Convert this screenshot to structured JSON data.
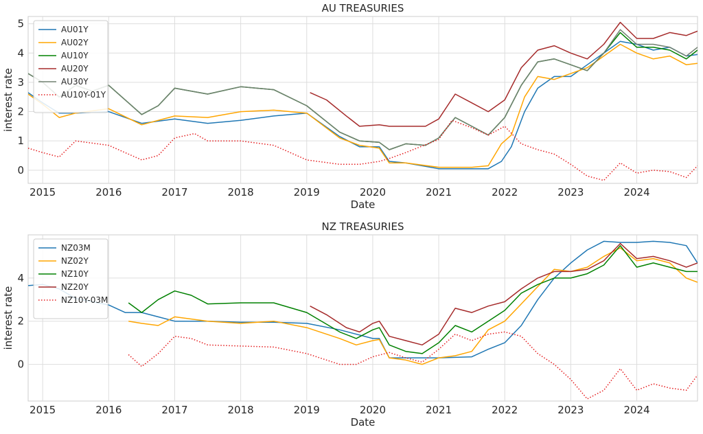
{
  "chart_data": [
    {
      "type": "line",
      "title": "AU TREASURIES",
      "xlabel": "Date",
      "ylabel": "interest rate",
      "xlim": [
        2014.78,
        2024.92
      ],
      "ylim": [
        -0.45,
        5.25
      ],
      "x_ticks": [
        "2015",
        "2016",
        "2017",
        "2018",
        "2019",
        "2020",
        "2021",
        "2022",
        "2023",
        "2024"
      ],
      "y_ticks": [
        "0",
        "1",
        "2",
        "3",
        "4",
        "5"
      ],
      "grid": true,
      "legend_position": "top-left",
      "series": [
        {
          "name": "AU01Y",
          "color": "#1f77b4",
          "style": "solid",
          "x": [
            2014.78,
            2015.0,
            2015.25,
            2015.5,
            2016.0,
            2016.5,
            2017.0,
            2017.5,
            2018.0,
            2018.5,
            2019.0,
            2019.5,
            2019.8,
            2020.1,
            2020.25,
            2020.5,
            2021.0,
            2021.5,
            2021.75,
            2021.95,
            2022.1,
            2022.3,
            2022.5,
            2022.75,
            2023.0,
            2023.25,
            2023.5,
            2023.75,
            2024.0,
            2024.25,
            2024.5,
            2024.75,
            2024.92
          ],
          "values": [
            2.65,
            2.3,
            1.95,
            1.95,
            2.0,
            1.6,
            1.75,
            1.6,
            1.7,
            1.85,
            1.95,
            1.15,
            0.8,
            0.8,
            0.3,
            0.25,
            0.05,
            0.05,
            0.05,
            0.3,
            0.8,
            2.0,
            2.8,
            3.2,
            3.2,
            3.6,
            4.0,
            4.4,
            4.3,
            4.1,
            4.2,
            3.9,
            3.95
          ]
        },
        {
          "name": "AU02Y",
          "color": "#ffa500",
          "style": "solid",
          "x": [
            2014.78,
            2015.0,
            2015.25,
            2015.5,
            2016.0,
            2016.5,
            2017.0,
            2017.5,
            2018.0,
            2018.5,
            2019.0,
            2019.5,
            2019.8,
            2020.1,
            2020.25,
            2020.5,
            2021.0,
            2021.5,
            2021.75,
            2021.95,
            2022.1,
            2022.3,
            2022.5,
            2022.75,
            2023.0,
            2023.25,
            2023.5,
            2023.75,
            2024.0,
            2024.25,
            2024.5,
            2024.75,
            2024.92
          ],
          "values": [
            2.6,
            2.25,
            1.8,
            1.95,
            2.1,
            1.55,
            1.85,
            1.8,
            2.0,
            2.05,
            1.95,
            1.1,
            0.85,
            0.75,
            0.25,
            0.25,
            0.1,
            0.1,
            0.15,
            0.9,
            1.2,
            2.5,
            3.2,
            3.1,
            3.3,
            3.5,
            3.9,
            4.3,
            4.0,
            3.8,
            3.9,
            3.6,
            3.65
          ]
        },
        {
          "name": "AU10Y",
          "color": "#008000",
          "style": "solid",
          "x": [
            2014.78,
            2015.0,
            2015.25,
            2015.5,
            2015.75,
            2016.0,
            2016.5,
            2016.75,
            2017.0,
            2017.5,
            2018.0,
            2018.5,
            2019.0,
            2019.5,
            2019.8,
            2020.1,
            2020.25,
            2020.5,
            2020.8,
            2021.0,
            2021.25,
            2021.5,
            2021.75,
            2022.0,
            2022.25,
            2022.5,
            2022.75,
            2023.0,
            2023.25,
            2023.5,
            2023.75,
            2024.0,
            2024.25,
            2024.5,
            2024.75,
            2024.92
          ],
          "values": [
            3.3,
            3.0,
            2.5,
            2.9,
            2.7,
            2.9,
            1.9,
            2.2,
            2.8,
            2.6,
            2.85,
            2.75,
            2.2,
            1.3,
            1.0,
            0.95,
            0.7,
            0.9,
            0.85,
            1.1,
            1.8,
            1.5,
            1.2,
            1.8,
            2.9,
            3.7,
            3.8,
            3.6,
            3.4,
            4.0,
            4.7,
            4.2,
            4.2,
            4.1,
            3.8,
            4.1
          ]
        },
        {
          "name": "AU20Y",
          "color": "#a52a2a",
          "style": "solid",
          "x": [
            2019.05,
            2019.3,
            2019.6,
            2019.8,
            2020.1,
            2020.25,
            2020.5,
            2020.8,
            2021.0,
            2021.25,
            2021.5,
            2021.75,
            2022.0,
            2022.25,
            2022.5,
            2022.75,
            2023.0,
            2023.25,
            2023.5,
            2023.75,
            2024.0,
            2024.25,
            2024.5,
            2024.75,
            2024.92
          ],
          "values": [
            2.65,
            2.4,
            1.85,
            1.5,
            1.55,
            1.5,
            1.5,
            1.5,
            1.75,
            2.6,
            2.3,
            2.0,
            2.4,
            3.5,
            4.1,
            4.25,
            4.0,
            3.8,
            4.3,
            5.05,
            4.5,
            4.5,
            4.7,
            4.6,
            4.75
          ]
        },
        {
          "name": "AU30Y",
          "color": "#708070",
          "style": "solid",
          "x": [
            2014.78,
            2015.0,
            2015.25,
            2015.5,
            2015.75,
            2016.0,
            2016.5,
            2016.75,
            2017.0,
            2017.5,
            2018.0,
            2018.5,
            2019.0,
            2019.5,
            2019.8,
            2020.1,
            2020.25,
            2020.5,
            2020.8,
            2021.0,
            2021.25,
            2021.5,
            2021.75,
            2022.0,
            2022.25,
            2022.5,
            2022.75,
            2023.0,
            2023.25,
            2023.5,
            2023.75,
            2024.0,
            2024.25,
            2024.5,
            2024.75,
            2024.92
          ],
          "values": [
            3.3,
            3.0,
            2.5,
            2.9,
            2.7,
            2.9,
            1.9,
            2.2,
            2.8,
            2.6,
            2.85,
            2.75,
            2.2,
            1.3,
            1.0,
            0.95,
            0.7,
            0.9,
            0.85,
            1.1,
            1.8,
            1.5,
            1.2,
            1.8,
            2.9,
            3.7,
            3.8,
            3.6,
            3.4,
            4.0,
            4.8,
            4.3,
            4.3,
            4.2,
            3.9,
            4.2
          ]
        },
        {
          "name": "AU10Y-01Y",
          "color": "#e41a1c",
          "style": "dotted",
          "x": [
            2014.78,
            2015.0,
            2015.25,
            2015.5,
            2016.0,
            2016.5,
            2016.75,
            2017.0,
            2017.3,
            2017.5,
            2018.0,
            2018.5,
            2019.0,
            2019.5,
            2019.8,
            2020.1,
            2020.25,
            2020.5,
            2021.0,
            2021.2,
            2021.5,
            2021.75,
            2022.0,
            2022.25,
            2022.5,
            2022.75,
            2023.0,
            2023.25,
            2023.5,
            2023.75,
            2024.0,
            2024.25,
            2024.5,
            2024.75,
            2024.92
          ],
          "values": [
            0.75,
            0.6,
            0.45,
            1.0,
            0.85,
            0.35,
            0.5,
            1.1,
            1.25,
            1.0,
            1.0,
            0.85,
            0.35,
            0.2,
            0.2,
            0.3,
            0.4,
            0.6,
            1.05,
            1.7,
            1.45,
            1.2,
            1.5,
            0.9,
            0.7,
            0.55,
            0.2,
            -0.2,
            -0.35,
            0.25,
            -0.1,
            0.0,
            -0.05,
            -0.25,
            0.15
          ]
        }
      ]
    },
    {
      "type": "line",
      "title": "NZ TREASURIES",
      "xlabel": "Date",
      "ylabel": "interest rate",
      "xlim": [
        2014.78,
        2024.92
      ],
      "ylim": [
        -1.7,
        6.0
      ],
      "x_ticks": [
        "2015",
        "2016",
        "2017",
        "2018",
        "2019",
        "2020",
        "2021",
        "2022",
        "2023",
        "2024"
      ],
      "y_ticks": [
        "0",
        "2",
        "4"
      ],
      "grid": true,
      "legend_position": "top-left",
      "series": [
        {
          "name": "NZ03M",
          "color": "#1f77b4",
          "style": "solid",
          "x": [
            2014.78,
            2015.0,
            2015.25,
            2015.5,
            2015.75,
            2016.0,
            2016.25,
            2016.5,
            2016.75,
            2017.0,
            2017.5,
            2018.0,
            2018.5,
            2019.0,
            2019.5,
            2020.0,
            2020.1,
            2020.25,
            2020.5,
            2021.0,
            2021.5,
            2021.75,
            2022.0,
            2022.25,
            2022.5,
            2022.75,
            2023.0,
            2023.25,
            2023.5,
            2023.75,
            2024.0,
            2024.25,
            2024.5,
            2024.75,
            2024.92
          ],
          "values": [
            3.65,
            3.7,
            3.5,
            3.05,
            2.9,
            2.75,
            2.4,
            2.4,
            2.2,
            2.0,
            2.0,
            1.95,
            1.95,
            1.9,
            1.6,
            1.2,
            1.2,
            0.3,
            0.3,
            0.3,
            0.35,
            0.7,
            1.0,
            1.8,
            3.0,
            4.0,
            4.7,
            5.3,
            5.7,
            5.65,
            5.65,
            5.7,
            5.65,
            5.5,
            4.7
          ]
        },
        {
          "name": "NZ02Y",
          "color": "#ffa500",
          "style": "solid",
          "x": [
            2016.3,
            2016.5,
            2016.75,
            2017.0,
            2017.5,
            2018.0,
            2018.5,
            2019.0,
            2019.5,
            2019.75,
            2020.0,
            2020.1,
            2020.25,
            2020.5,
            2020.75,
            2021.0,
            2021.25,
            2021.5,
            2021.75,
            2022.0,
            2022.25,
            2022.5,
            2022.75,
            2023.0,
            2023.25,
            2023.5,
            2023.75,
            2024.0,
            2024.25,
            2024.5,
            2024.75,
            2024.92
          ],
          "values": [
            2.0,
            1.9,
            1.8,
            2.2,
            2.0,
            1.9,
            2.0,
            1.7,
            1.2,
            0.9,
            1.1,
            1.15,
            0.3,
            0.2,
            0.0,
            0.3,
            0.4,
            0.6,
            1.6,
            2.0,
            2.8,
            3.6,
            4.4,
            4.3,
            4.5,
            5.0,
            5.4,
            4.8,
            4.9,
            4.7,
            4.0,
            3.8
          ]
        },
        {
          "name": "NZ10Y",
          "color": "#008000",
          "style": "solid",
          "x": [
            2016.3,
            2016.5,
            2016.75,
            2017.0,
            2017.25,
            2017.5,
            2018.0,
            2018.5,
            2019.0,
            2019.5,
            2019.75,
            2020.0,
            2020.1,
            2020.25,
            2020.5,
            2020.75,
            2021.0,
            2021.25,
            2021.5,
            2021.75,
            2022.0,
            2022.25,
            2022.5,
            2022.75,
            2023.0,
            2023.25,
            2023.5,
            2023.75,
            2024.0,
            2024.25,
            2024.5,
            2024.75,
            2024.92
          ],
          "values": [
            2.85,
            2.4,
            3.0,
            3.4,
            3.2,
            2.8,
            2.85,
            2.85,
            2.4,
            1.5,
            1.2,
            1.6,
            1.7,
            0.9,
            0.6,
            0.5,
            1.0,
            1.8,
            1.5,
            2.0,
            2.5,
            3.3,
            3.7,
            4.0,
            4.0,
            4.2,
            4.6,
            5.5,
            4.5,
            4.7,
            4.5,
            4.3,
            4.3
          ]
        },
        {
          "name": "NZ20Y",
          "color": "#a52a2a",
          "style": "solid",
          "x": [
            2019.05,
            2019.3,
            2019.6,
            2019.8,
            2020.0,
            2020.1,
            2020.25,
            2020.5,
            2020.75,
            2021.0,
            2021.25,
            2021.5,
            2021.75,
            2022.0,
            2022.25,
            2022.5,
            2022.75,
            2023.0,
            2023.25,
            2023.5,
            2023.75,
            2024.0,
            2024.25,
            2024.5,
            2024.75,
            2024.92
          ],
          "values": [
            2.7,
            2.3,
            1.7,
            1.5,
            1.9,
            2.0,
            1.3,
            1.1,
            0.9,
            1.4,
            2.6,
            2.4,
            2.7,
            2.9,
            3.5,
            4.0,
            4.3,
            4.3,
            4.4,
            4.8,
            5.6,
            4.9,
            5.0,
            4.8,
            4.5,
            4.7
          ]
        },
        {
          "name": "NZ10Y-03M",
          "color": "#e41a1c",
          "style": "dotted",
          "x": [
            2016.3,
            2016.5,
            2016.75,
            2017.0,
            2017.25,
            2017.5,
            2018.0,
            2018.5,
            2019.0,
            2019.5,
            2019.75,
            2020.0,
            2020.25,
            2020.5,
            2020.75,
            2021.0,
            2021.25,
            2021.5,
            2021.75,
            2022.0,
            2022.25,
            2022.5,
            2022.75,
            2023.0,
            2023.25,
            2023.5,
            2023.75,
            2024.0,
            2024.25,
            2024.5,
            2024.75,
            2024.92
          ],
          "values": [
            0.45,
            -0.1,
            0.5,
            1.3,
            1.2,
            0.9,
            0.85,
            0.8,
            0.5,
            0.0,
            0.0,
            0.35,
            0.55,
            0.3,
            0.1,
            0.7,
            1.4,
            1.1,
            1.4,
            1.5,
            1.3,
            0.5,
            0.0,
            -0.7,
            -1.6,
            -1.2,
            -0.2,
            -1.2,
            -0.9,
            -1.1,
            -1.2,
            -0.5
          ]
        }
      ]
    }
  ]
}
